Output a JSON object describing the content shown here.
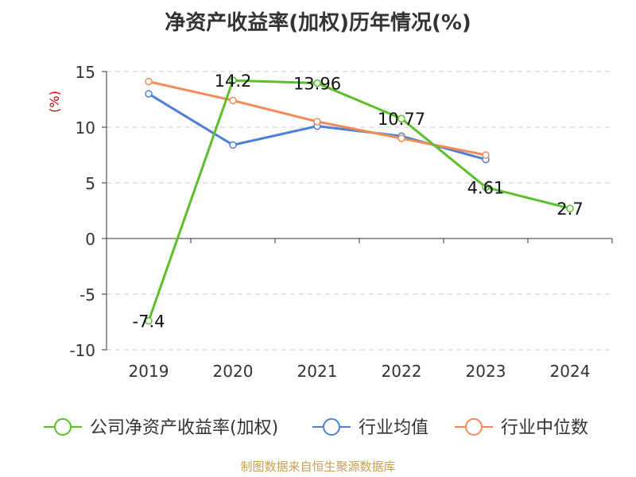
{
  "chart_data": {
    "type": "line",
    "title": "净资产收益率(加权)历年情况(%)",
    "ylabel": "(%)",
    "ylim": [
      -10,
      15
    ],
    "yticks": [
      15,
      10,
      5,
      0,
      -5,
      -10
    ],
    "categories": [
      "2019",
      "2020",
      "2021",
      "2022",
      "2023",
      "2024"
    ],
    "grid": true,
    "legend_position": "bottom",
    "series": [
      {
        "name": "公司净资产收益率(加权)",
        "color": "#5bbf2a",
        "values": [
          -7.4,
          14.2,
          13.96,
          10.77,
          4.61,
          2.7
        ],
        "show_labels": true
      },
      {
        "name": "行业均值",
        "color": "#4e7fd8",
        "values": [
          13.0,
          8.4,
          10.1,
          9.2,
          7.1,
          null
        ],
        "show_labels": false
      },
      {
        "name": "行业中位数",
        "color": "#f28b59",
        "values": [
          14.1,
          12.4,
          10.5,
          9.0,
          7.5,
          null
        ],
        "show_labels": false
      }
    ]
  },
  "source_note": "制图数据来自恒生聚源数据库"
}
